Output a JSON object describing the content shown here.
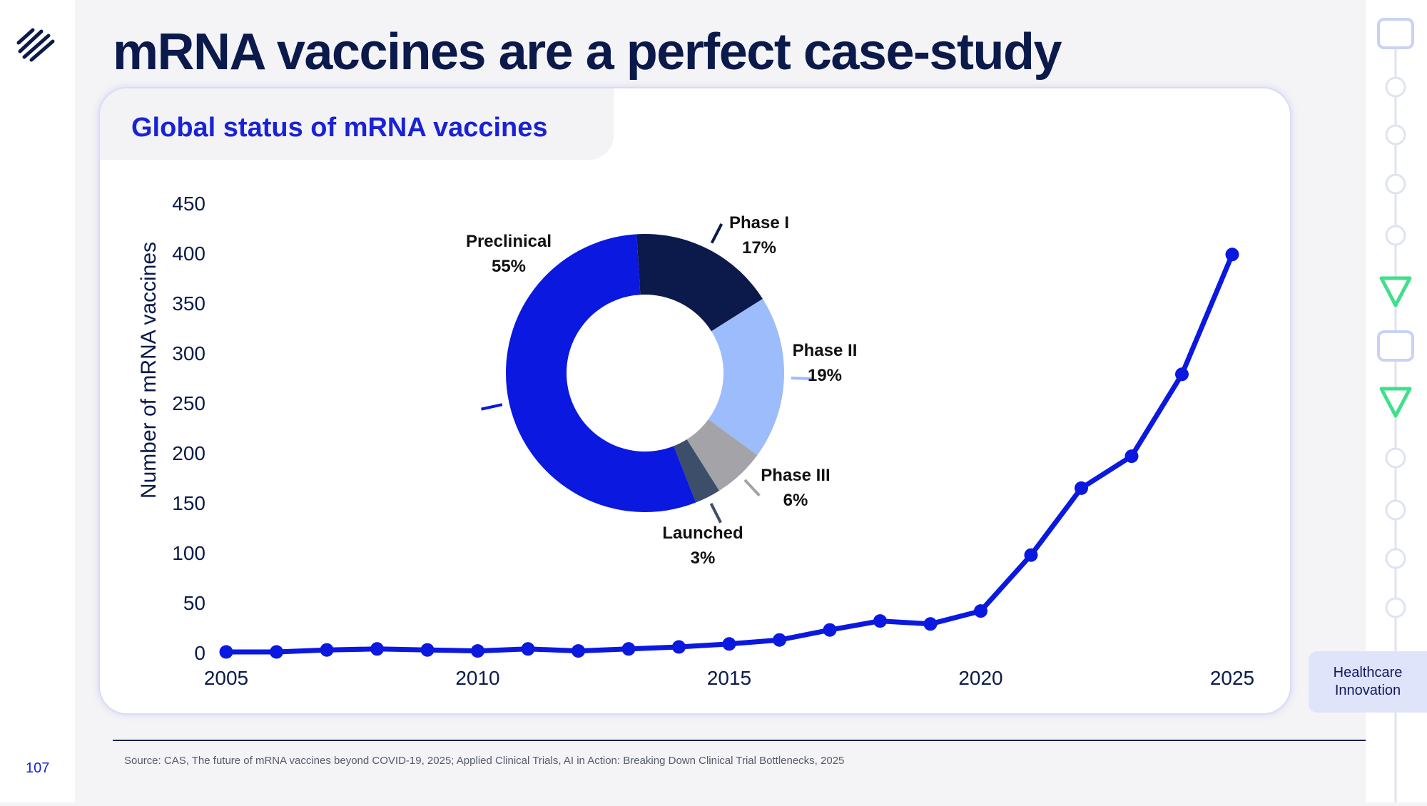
{
  "slide": {
    "title": "mRNA vaccines are a perfect case-study",
    "page_number": "107",
    "source": "Source: CAS, The future of mRNA vaccines beyond COVID-19, 2025; Applied Clinical Trials, AI in Action: Breaking Down Clinical Trial Bottlenecks, 2025",
    "section_badge": [
      "Healthcare",
      "Innovation"
    ],
    "logo_icon": "diagonal-stripes-logo-icon",
    "progress_icons": [
      "rounded-square-icon",
      "circle-icon",
      "circle-icon",
      "circle-icon",
      "circle-icon",
      "triangle-down-icon",
      "rounded-square-icon",
      "triangle-down-icon",
      "circle-icon",
      "circle-icon",
      "circle-icon",
      "circle-icon"
    ]
  },
  "card": {
    "title": "Global status of mRNA vaccines"
  },
  "colors": {
    "navy": "#0b1a4a",
    "brand_blue": "#1a22d6",
    "line_blue": "#0a18e0",
    "accent_green": "#3fe08a",
    "rail_outline": "#c9d2f5"
  },
  "chart_data": [
    {
      "type": "line",
      "ylabel": "Number of mRNA vaccines",
      "xlabel": "",
      "xlim": [
        2005,
        2025
      ],
      "ylim": [
        0,
        450
      ],
      "x_ticks": [
        2005,
        2010,
        2015,
        2020,
        2025
      ],
      "y_ticks": [
        0,
        50,
        100,
        150,
        200,
        250,
        300,
        350,
        400,
        450
      ],
      "grid": false,
      "series": [
        {
          "x": [
            2005,
            2006,
            2007,
            2008,
            2009,
            2010,
            2011,
            2012,
            2013,
            2014,
            2015,
            2016,
            2017,
            2018,
            2019,
            2020,
            2021,
            2022,
            2023,
            2024,
            2025
          ],
          "y": [
            0,
            0,
            2,
            3,
            2,
            1,
            3,
            1,
            3,
            5,
            8,
            12,
            22,
            31,
            28,
            41,
            97,
            164,
            196,
            278,
            398
          ],
          "color": "#0a18e0"
        }
      ]
    },
    {
      "type": "pie",
      "donut": true,
      "slices": [
        {
          "label": "Phase I",
          "value": 17,
          "display": "17%",
          "color": "#0b1a4a"
        },
        {
          "label": "Phase II",
          "value": 19,
          "display": "19%",
          "color": "#9dbcfb"
        },
        {
          "label": "Phase III",
          "value": 6,
          "display": "6%",
          "color": "#a4a4a8"
        },
        {
          "label": "Launched",
          "value": 3,
          "display": "3%",
          "color": "#3c4e6a"
        },
        {
          "label": "Preclinical",
          "value": 55,
          "display": "55%",
          "color": "#0a18e0"
        }
      ]
    }
  ]
}
